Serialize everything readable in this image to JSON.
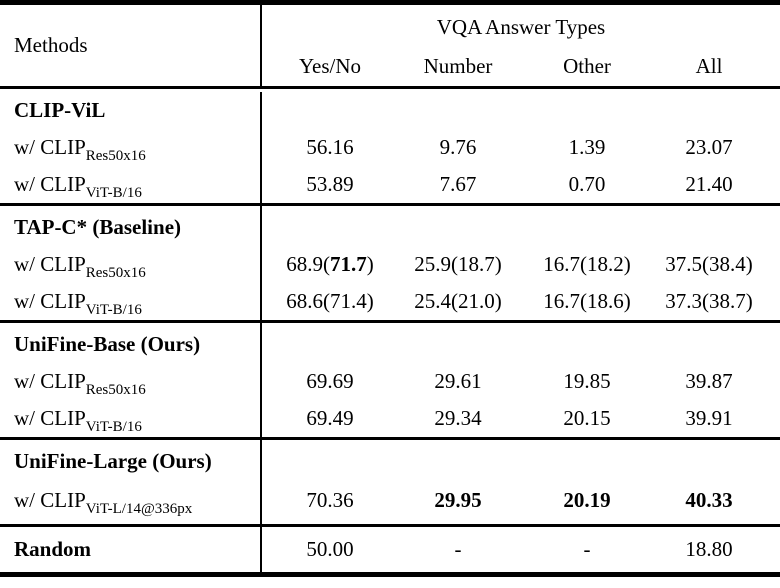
{
  "header": {
    "methods": "Methods",
    "group": "VQA Answer Types",
    "columns": [
      "Yes/No",
      "Number",
      "Other",
      "All"
    ]
  },
  "sections": [
    {
      "title": "CLIP-ViL",
      "rows": [
        {
          "label": "w/ CLIP",
          "sub": "Res50x16",
          "cells": [
            {
              "pre": "56.16"
            },
            {
              "pre": "9.76"
            },
            {
              "pre": "1.39"
            },
            {
              "pre": "23.07"
            }
          ]
        },
        {
          "label": "w/ CLIP",
          "sub": "ViT-B/16",
          "cells": [
            {
              "pre": "53.89"
            },
            {
              "pre": "7.67"
            },
            {
              "pre": "0.70"
            },
            {
              "pre": "21.40"
            }
          ]
        }
      ]
    },
    {
      "title": "TAP-C* (Baseline)",
      "rows": [
        {
          "label": "w/ CLIP",
          "sub": "Res50x16",
          "cells": [
            {
              "pre": "68.9(",
              "b": "71.7",
              "post": ")"
            },
            {
              "pre": "25.9(18.7)"
            },
            {
              "pre": "16.7(18.2)"
            },
            {
              "pre": "37.5(38.4)"
            }
          ]
        },
        {
          "label": "w/ CLIP",
          "sub": "ViT-B/16",
          "cells": [
            {
              "pre": "68.6(71.4)"
            },
            {
              "pre": "25.4(21.0)"
            },
            {
              "pre": "16.7(18.6)"
            },
            {
              "pre": "37.3(38.7)"
            }
          ]
        }
      ]
    },
    {
      "title": "UniFine-Base (Ours)",
      "rows": [
        {
          "label": "w/ CLIP",
          "sub": "Res50x16",
          "cells": [
            {
              "pre": "69.69"
            },
            {
              "pre": "29.61"
            },
            {
              "pre": "19.85"
            },
            {
              "pre": "39.87"
            }
          ]
        },
        {
          "label": "w/ CLIP",
          "sub": "ViT-B/16",
          "cells": [
            {
              "pre": "69.49"
            },
            {
              "pre": "29.34"
            },
            {
              "pre": "20.15"
            },
            {
              "pre": "39.91"
            }
          ]
        }
      ]
    },
    {
      "title": "UniFine-Large (Ours)",
      "rows": [
        {
          "label": "w/ CLIP",
          "sub": "ViT-L/14@336px",
          "cells": [
            {
              "pre": "70.36"
            },
            {
              "b": "29.95"
            },
            {
              "b": "20.19"
            },
            {
              "b": "40.33"
            }
          ]
        }
      ]
    },
    {
      "title": "",
      "rows": [
        {
          "label": "Random",
          "sub": "",
          "cells": [
            {
              "pre": "50.00"
            },
            {
              "pre": "-"
            },
            {
              "pre": "-"
            },
            {
              "pre": "18.80"
            }
          ]
        }
      ]
    }
  ]
}
